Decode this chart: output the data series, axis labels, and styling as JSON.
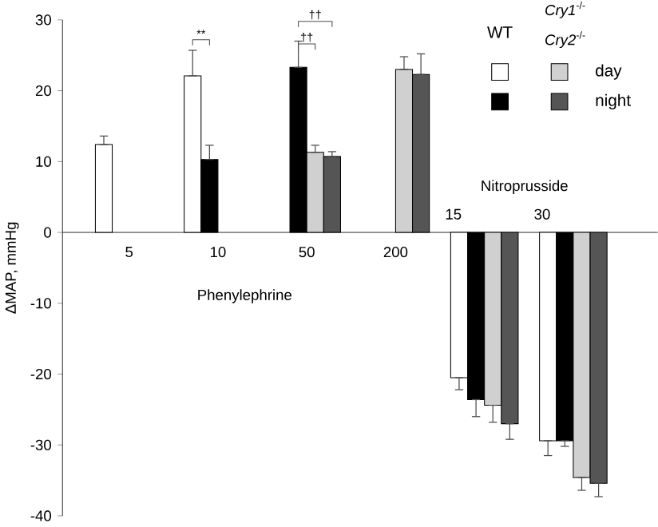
{
  "chart_data": {
    "type": "bar",
    "ylabel": "ΔMAP, mmHg",
    "categories": [
      "5",
      "10",
      "50",
      "200",
      "15",
      "30"
    ],
    "series": [
      {
        "color": "#ffffff",
        "values": [
          12.4,
          22.1,
          null,
          null,
          -20.5,
          -29.4
        ],
        "errors": [
          1.2,
          3.6,
          null,
          null,
          1.7,
          2.1
        ]
      },
      {
        "color": "#000000",
        "values": [
          null,
          10.3,
          23.3,
          null,
          -23.6,
          -29.4
        ],
        "errors": [
          null,
          2,
          3.7,
          null,
          2.4,
          0.8
        ]
      },
      {
        "color": "#d0d0d0",
        "values": [
          null,
          null,
          11.3,
          23,
          -24.4,
          -34.6
        ],
        "errors": [
          null,
          null,
          1,
          1.8,
          2.4,
          1.8
        ]
      },
      {
        "color": "#555555",
        "values": [
          null,
          null,
          10.7,
          22.3,
          -27,
          -35.4
        ],
        "errors": [
          null,
          null,
          0.7,
          2.9,
          2.2,
          1.9
        ]
      }
    ],
    "ylim": [
      -40,
      30
    ],
    "yticks": [
      -40,
      -30,
      -20,
      -10,
      0,
      10,
      20,
      30
    ],
    "grid": false,
    "annotations": [
      "**",
      "††",
      "††",
      "Phenylephrine",
      "Nitroprusside",
      "WT",
      "*Cry1*$^{-/-}$",
      "*Cry2*$^{-/-}$",
      "day",
      "night"
    ]
  }
}
